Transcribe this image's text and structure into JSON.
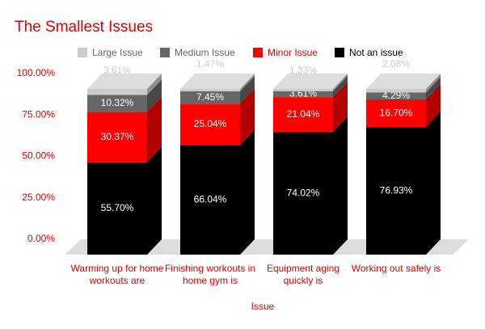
{
  "chart_data": {
    "type": "bar3d_stacked",
    "title": "The Smallest Issues",
    "x_label": "Issue",
    "categories": [
      "Warming up for home workouts are",
      "Finishing workouts in home gym is",
      "Equipment aging quickly is",
      "Working out safely is"
    ],
    "series": [
      {
        "name": "Large Issue",
        "color": "#cccccc",
        "values": [
          3.61,
          1.47,
          1.33,
          2.08
        ],
        "value_labels": [
          "3.61%",
          "1.47%",
          "1.33%",
          "2.08%"
        ]
      },
      {
        "name": "Medium Issue",
        "color": "#666666",
        "values": [
          10.32,
          7.45,
          3.61,
          4.29
        ],
        "value_labels": [
          "10.32%",
          "7.45%",
          "3.61%",
          "4.29%"
        ]
      },
      {
        "name": "Minor Issue",
        "color": "#ff0000",
        "values": [
          30.37,
          25.04,
          21.04,
          16.7
        ],
        "value_labels": [
          "30.37%",
          "25.04%",
          "21.04%",
          "16.70%"
        ]
      },
      {
        "name": "Not an issue",
        "color": "#000000",
        "values": [
          55.7,
          66.04,
          74.02,
          76.93
        ],
        "value_labels": [
          "55.70%",
          "66.04%",
          "74.02%",
          "76.93%"
        ]
      }
    ],
    "ylim": [
      0,
      100
    ],
    "yticks": [
      {
        "value": 0,
        "label": "0.00%"
      },
      {
        "value": 25,
        "label": "25.00%"
      },
      {
        "value": 50,
        "label": "50.00%"
      },
      {
        "value": 75,
        "label": "75.00%"
      },
      {
        "value": 100,
        "label": "100.00%"
      }
    ],
    "legend": "top"
  }
}
